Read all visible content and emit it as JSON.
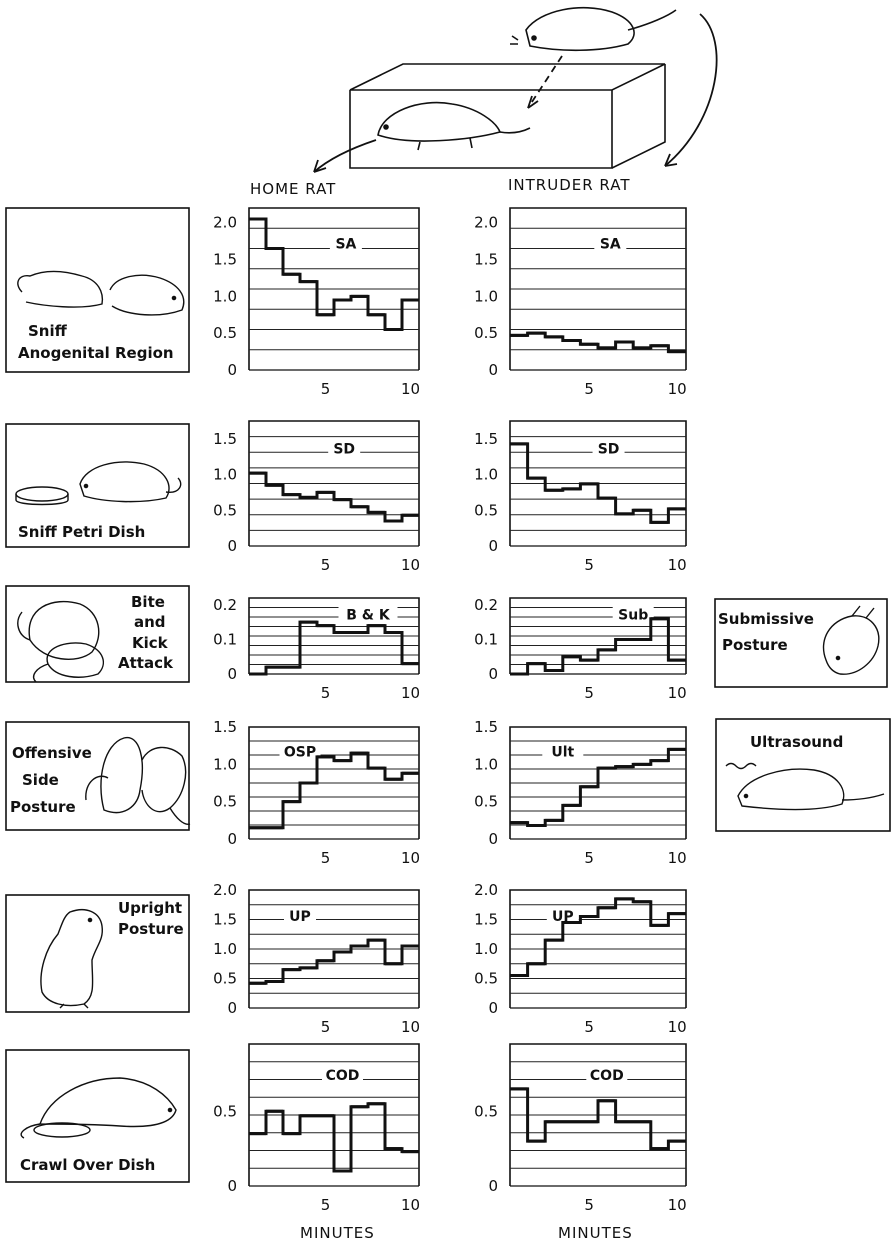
{
  "headers": {
    "home": "HOME RAT",
    "intruder": "INTRUDER RAT"
  },
  "xlabel": "MINUTES",
  "behaviors": [
    {
      "id": "sa",
      "lines": [
        "Sniff",
        "Anogenital Region"
      ]
    },
    {
      "id": "sd",
      "lines": [
        "Sniff Petri Dish"
      ]
    },
    {
      "id": "bk",
      "lines": [
        "Bite",
        "and",
        "Kick",
        "Attack"
      ]
    },
    {
      "id": "osp",
      "lines": [
        "Offensive",
        "Side",
        "Posture"
      ]
    },
    {
      "id": "up",
      "lines": [
        "Upright",
        "Posture"
      ]
    },
    {
      "id": "cod",
      "lines": [
        "Crawl Over Dish"
      ]
    }
  ],
  "side_panels": [
    {
      "id": "sub",
      "lines": [
        "Submissive",
        "Posture"
      ]
    },
    {
      "id": "ult",
      "lines": [
        "Ultrasound"
      ]
    }
  ],
  "chart_data": [
    {
      "type": "line",
      "step": true,
      "group": "HOME RAT",
      "label": "SA",
      "x": [
        1,
        2,
        3,
        4,
        5,
        6,
        7,
        8,
        9,
        10
      ],
      "values": [
        2.05,
        1.65,
        1.3,
        1.2,
        0.75,
        0.95,
        1.0,
        0.75,
        0.55,
        0.95
      ],
      "ylim": [
        0,
        2.2
      ],
      "yticks": [
        "0",
        "0.5",
        "1.0",
        "1.5",
        "2.0"
      ],
      "xticks": [
        "5",
        "10"
      ]
    },
    {
      "type": "line",
      "step": true,
      "group": "INTRUDER RAT",
      "label": "SA",
      "x": [
        1,
        2,
        3,
        4,
        5,
        6,
        7,
        8,
        9,
        10
      ],
      "values": [
        0.47,
        0.5,
        0.45,
        0.4,
        0.35,
        0.3,
        0.38,
        0.3,
        0.33,
        0.25
      ],
      "ylim": [
        0,
        2.2
      ],
      "yticks": [
        "0",
        "0.5",
        "1.0",
        "1.5",
        "2.0"
      ],
      "xticks": [
        "5",
        "10"
      ]
    },
    {
      "type": "line",
      "step": true,
      "group": "HOME RAT",
      "label": "SD",
      "x": [
        1,
        2,
        3,
        4,
        5,
        6,
        7,
        8,
        9,
        10
      ],
      "values": [
        1.02,
        0.85,
        0.72,
        0.68,
        0.75,
        0.65,
        0.55,
        0.47,
        0.35,
        0.43
      ],
      "ylim": [
        0,
        1.75
      ],
      "yticks": [
        "0",
        "0.5",
        "1.0",
        "1.5"
      ],
      "xticks": [
        "5",
        "10"
      ]
    },
    {
      "type": "line",
      "step": true,
      "group": "INTRUDER RAT",
      "label": "SD",
      "x": [
        1,
        2,
        3,
        4,
        5,
        6,
        7,
        8,
        9,
        10
      ],
      "values": [
        1.43,
        0.95,
        0.78,
        0.8,
        0.87,
        0.67,
        0.45,
        0.5,
        0.33,
        0.52
      ],
      "ylim": [
        0,
        1.75
      ],
      "yticks": [
        "0",
        "0.5",
        "1.0",
        "1.5"
      ],
      "xticks": [
        "5",
        "10"
      ]
    },
    {
      "type": "line",
      "step": true,
      "group": "HOME RAT",
      "label": "B & K",
      "x": [
        1,
        2,
        3,
        4,
        5,
        6,
        7,
        8,
        9,
        10
      ],
      "values": [
        0.0,
        0.02,
        0.02,
        0.15,
        0.14,
        0.12,
        0.12,
        0.14,
        0.12,
        0.03
      ],
      "ylim": [
        0,
        0.22
      ],
      "yticks": [
        "0",
        "0.1",
        "0.2"
      ],
      "xticks": [
        "5",
        "10"
      ]
    },
    {
      "type": "line",
      "step": true,
      "group": "INTRUDER RAT",
      "label": "Sub",
      "x": [
        1,
        2,
        3,
        4,
        5,
        6,
        7,
        8,
        9,
        10
      ],
      "values": [
        0.0,
        0.03,
        0.01,
        0.05,
        0.04,
        0.07,
        0.1,
        0.1,
        0.16,
        0.04
      ],
      "ylim": [
        0,
        0.22
      ],
      "yticks": [
        "0",
        "0.1",
        "0.2"
      ],
      "xticks": [
        "5",
        "10"
      ]
    },
    {
      "type": "line",
      "step": true,
      "group": "HOME RAT",
      "label": "OSP",
      "x": [
        1,
        2,
        3,
        4,
        5,
        6,
        7,
        8,
        9,
        10
      ],
      "values": [
        0.15,
        0.15,
        0.5,
        0.75,
        1.1,
        1.05,
        1.15,
        0.95,
        0.8,
        0.88
      ],
      "ylim": [
        0,
        1.5
      ],
      "yticks": [
        "0",
        "0.5",
        "1.0",
        "1.5"
      ],
      "xticks": [
        "5",
        "10"
      ]
    },
    {
      "type": "line",
      "step": true,
      "group": "INTRUDER RAT",
      "label": "Ult",
      "x": [
        1,
        2,
        3,
        4,
        5,
        6,
        7,
        8,
        9,
        10
      ],
      "values": [
        0.22,
        0.18,
        0.25,
        0.45,
        0.7,
        0.95,
        0.97,
        1.0,
        1.05,
        1.2
      ],
      "ylim": [
        0,
        1.5
      ],
      "yticks": [
        "0",
        "0.5",
        "1.0",
        "1.5"
      ],
      "xticks": [
        "5",
        "10"
      ]
    },
    {
      "type": "line",
      "step": true,
      "group": "HOME RAT",
      "label": "UP",
      "x": [
        1,
        2,
        3,
        4,
        5,
        6,
        7,
        8,
        9,
        10
      ],
      "values": [
        0.42,
        0.45,
        0.65,
        0.68,
        0.8,
        0.95,
        1.05,
        1.15,
        0.75,
        1.05
      ],
      "ylim": [
        0,
        2.0
      ],
      "yticks": [
        "0",
        "0.5",
        "1.0",
        "1.5",
        "2.0"
      ],
      "xticks": [
        "5",
        "10"
      ]
    },
    {
      "type": "line",
      "step": true,
      "group": "INTRUDER RAT",
      "label": "UP",
      "x": [
        1,
        2,
        3,
        4,
        5,
        6,
        7,
        8,
        9,
        10
      ],
      "values": [
        0.55,
        0.75,
        1.15,
        1.45,
        1.55,
        1.7,
        1.85,
        1.8,
        1.4,
        1.6
      ],
      "ylim": [
        0,
        2.0
      ],
      "yticks": [
        "0",
        "0.5",
        "1.0",
        "1.5",
        "2.0"
      ],
      "xticks": [
        "5",
        "10"
      ]
    },
    {
      "type": "line",
      "step": true,
      "group": "HOME RAT",
      "label": "COD",
      "x": [
        1,
        2,
        3,
        4,
        5,
        6,
        7,
        8,
        9,
        10
      ],
      "values": [
        0.35,
        0.5,
        0.35,
        0.47,
        0.47,
        0.1,
        0.53,
        0.55,
        0.25,
        0.23
      ],
      "ylim": [
        0,
        0.95
      ],
      "yticks": [
        "0",
        "0.5"
      ],
      "xticks": [
        "5",
        "10"
      ]
    },
    {
      "type": "line",
      "step": true,
      "group": "INTRUDER RAT",
      "label": "COD",
      "x": [
        1,
        2,
        3,
        4,
        5,
        6,
        7,
        8,
        9,
        10
      ],
      "values": [
        0.65,
        0.3,
        0.43,
        0.43,
        0.43,
        0.57,
        0.43,
        0.43,
        0.25,
        0.3
      ],
      "ylim": [
        0,
        0.95
      ],
      "yticks": [
        "0",
        "0.5"
      ],
      "xticks": [
        "5",
        "10"
      ]
    }
  ]
}
